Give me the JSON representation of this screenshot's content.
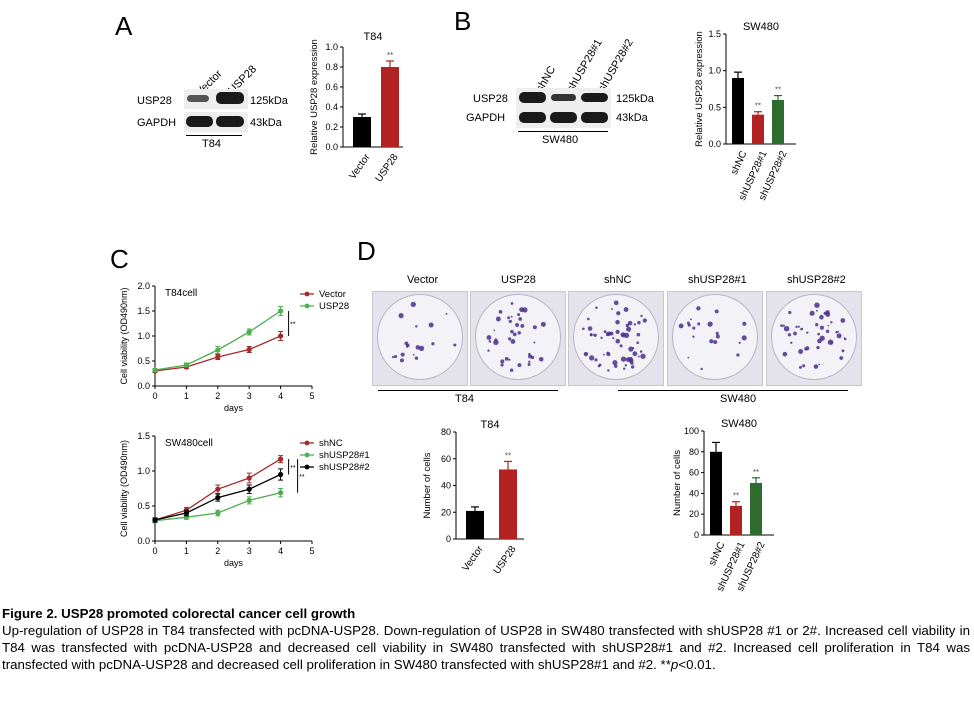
{
  "panels": {
    "a": "A",
    "b": "B",
    "c": "C",
    "d": "D"
  },
  "panelA": {
    "lanes": [
      "Vector",
      "USP28"
    ],
    "rows": [
      {
        "name": "USP28",
        "size": "125kDa"
      },
      {
        "name": "GAPDH",
        "size": "43kDa"
      }
    ],
    "cell": "T84"
  },
  "panelB": {
    "lanes": [
      "shNC",
      "shUSP28#1",
      "shUSP28#2"
    ],
    "rows": [
      {
        "name": "USP28",
        "size": "125kDa"
      },
      {
        "name": "GAPDH",
        "size": "43kDa"
      }
    ],
    "cell": "SW480"
  },
  "panelD": {
    "labels": [
      "Vector",
      "USP28",
      "shNC",
      "shUSP28#1",
      "shUSP28#2"
    ],
    "groups": [
      "T84",
      "SW480"
    ]
  },
  "chart_data": [
    {
      "id": "A-bar",
      "type": "bar",
      "title": "T84",
      "ylabel": "Relative USP28 expression",
      "categories": [
        "Vector",
        "USP28"
      ],
      "values": [
        0.3,
        0.8
      ],
      "errors": [
        0.03,
        0.06
      ],
      "ylim": [
        0,
        1.0
      ],
      "yticks": [
        "0.0",
        "0.2",
        "0.4",
        "0.6",
        "0.8",
        "1.0"
      ],
      "colors": [
        "#000000",
        "#b22222"
      ],
      "sig": [
        "",
        "**"
      ]
    },
    {
      "id": "B-bar",
      "type": "bar",
      "title": "SW480",
      "ylabel": "Relative USP28 expression",
      "categories": [
        "shNC",
        "shUSP28#1",
        "shUSP28#2"
      ],
      "values": [
        0.9,
        0.4,
        0.6
      ],
      "errors": [
        0.08,
        0.04,
        0.06
      ],
      "ylim": [
        0,
        1.5
      ],
      "yticks": [
        "0.0",
        "0.5",
        "1.0",
        "1.5"
      ],
      "colors": [
        "#000000",
        "#b22222",
        "#2e6b2e"
      ],
      "sig": [
        "",
        "**",
        "**"
      ]
    },
    {
      "id": "C-top",
      "type": "line",
      "title": "T84cell",
      "xlabel": "days",
      "ylabel": "Cell viability (OD490nm)",
      "x": [
        0,
        1,
        2,
        3,
        4
      ],
      "xlim": [
        0,
        5
      ],
      "ylim": [
        0,
        2.0
      ],
      "xticks": [
        "0",
        "1",
        "2",
        "3",
        "4",
        "5"
      ],
      "yticks": [
        "0.0",
        "0.5",
        "1.0",
        "1.5",
        "2.0"
      ],
      "series": [
        {
          "name": "Vector",
          "values": [
            0.3,
            0.38,
            0.58,
            0.73,
            1.0
          ],
          "errors": [
            0.03,
            0.03,
            0.05,
            0.06,
            0.09
          ],
          "color": "#a52a2a"
        },
        {
          "name": "USP28",
          "values": [
            0.32,
            0.42,
            0.72,
            1.08,
            1.5
          ],
          "errors": [
            0.03,
            0.04,
            0.07,
            0.06,
            0.09
          ],
          "color": "#4caf50"
        }
      ],
      "sig": [
        "**"
      ]
    },
    {
      "id": "C-bottom",
      "type": "line",
      "title": "SW480cell",
      "xlabel": "days",
      "ylabel": "Cell viability (OD490nm)",
      "x": [
        0,
        1,
        2,
        3,
        4
      ],
      "xlim": [
        0,
        5
      ],
      "ylim": [
        0,
        1.5
      ],
      "xticks": [
        "0",
        "1",
        "2",
        "3",
        "4",
        "5"
      ],
      "yticks": [
        "0.0",
        "0.5",
        "1.0",
        "1.5"
      ],
      "series": [
        {
          "name": "shNC",
          "values": [
            0.3,
            0.44,
            0.74,
            0.9,
            1.17
          ],
          "errors": [
            0.03,
            0.04,
            0.06,
            0.07,
            0.05
          ],
          "color": "#a52a2a"
        },
        {
          "name": "shUSP28#1",
          "values": [
            0.29,
            0.34,
            0.4,
            0.58,
            0.69
          ],
          "errors": [
            0.03,
            0.03,
            0.04,
            0.05,
            0.06
          ],
          "color": "#4caf50"
        },
        {
          "name": "shUSP28#2",
          "values": [
            0.3,
            0.4,
            0.62,
            0.74,
            0.95
          ],
          "errors": [
            0.03,
            0.04,
            0.05,
            0.06,
            0.08
          ],
          "color": "#000000"
        }
      ],
      "sig": [
        "**",
        "**"
      ]
    },
    {
      "id": "D-T84",
      "type": "bar",
      "title": "T84",
      "ylabel": "Number of cells",
      "categories": [
        "Vector",
        "USP28"
      ],
      "values": [
        21,
        52
      ],
      "errors": [
        3,
        6
      ],
      "ylim": [
        0,
        80
      ],
      "yticks": [
        "0",
        "20",
        "40",
        "60",
        "80"
      ],
      "colors": [
        "#000000",
        "#b22222"
      ],
      "sig": [
        "",
        "**"
      ]
    },
    {
      "id": "D-SW480",
      "type": "bar",
      "title": "SW480",
      "ylabel": "Number of cells",
      "categories": [
        "shNC",
        "shUSP28#1",
        "shUSP28#2"
      ],
      "values": [
        80,
        28,
        50
      ],
      "errors": [
        9,
        4,
        5
      ],
      "ylim": [
        0,
        100
      ],
      "yticks": [
        "0",
        "20",
        "40",
        "60",
        "80",
        "100"
      ],
      "colors": [
        "#000000",
        "#b22222",
        "#2e6b2e"
      ],
      "sig": [
        "",
        "**",
        "**"
      ]
    }
  ],
  "caption": {
    "title": "Figure 2. USP28 promoted colorectal cancer cell growth",
    "body1": "Up-regulation of USP28 in T84 transfected with pcDNA-USP28. Down-regulation of USP28 in SW480 transfected with shUSP28 #1 or 2#. Increased cell viability in T84 was transfected with pcDNA-USP28 and decreased cell viability in SW480 transfected with shUSP28#1 and #2. Increased cell proliferation in T84 was transfected with pcDNA-USP28 and decreased cell proliferation in SW480 transfected with shUSP28#1 and #2. **",
    "p": "p",
    "body2": "<0.01."
  }
}
